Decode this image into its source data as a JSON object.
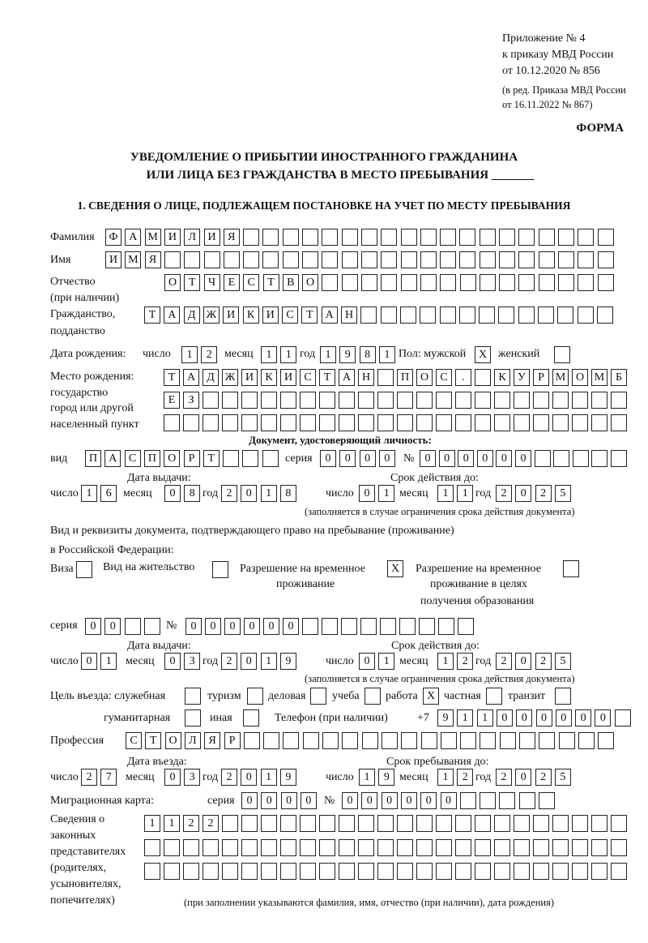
{
  "header": {
    "appendix": "Приложение № 4",
    "order": "к приказу МВД России",
    "order_date": "от 10.12.2020 № 856",
    "edition": "(в ред. Приказа МВД России",
    "edition_date": "от 16.11.2022 № 867)",
    "form_label": "ФОРМА",
    "title_line1": "УВЕДОМЛЕНИЕ О ПРИБЫТИИ ИНОСТРАННОГО ГРАЖДАНИНА",
    "title_line2": "ИЛИ ЛИЦА БЕЗ ГРАЖДАНСТВА В МЕСТО ПРЕБЫВАНИЯ _______",
    "section1": "1. СВЕДЕНИЯ О ЛИЦЕ, ПОДЛЕЖАЩЕМ ПОСТАНОВКЕ НА УЧЕТ ПО МЕСТУ ПРЕБЫВАНИЯ"
  },
  "labels": {
    "surname": "Фамилия",
    "name": "Имя",
    "patronymic": "Отчество",
    "patronymic_note": "(при наличии)",
    "citizenship": "Гражданство,",
    "citizenship2": "подданство",
    "birth_date": "Дата рождения:",
    "day": "число",
    "month": "месяц",
    "year": "год",
    "sex": "Пол: мужской",
    "female": "женский",
    "birthplace1": "Место рождения:",
    "birthplace2": "государство",
    "birthplace3": "город или другой",
    "birthplace4": "населенный пункт",
    "id_doc": "Документ, удостоверяющий личность:",
    "kind": "вид",
    "series": "серия",
    "number": "№",
    "issue_date": "Дата выдачи:",
    "valid_until": "Срок действия до:",
    "validity_note": "(заполняется в случае ограничения срока действия документа)",
    "right_doc1": "Вид и реквизиты документа, подтверждающего право на пребывание (проживание)",
    "right_doc2": "в Российской Федерации:",
    "visa": "Виза",
    "residence_permit": "Вид на жительство",
    "temp_residence1": "Разрешение на временное",
    "temp_residence2": "проживание",
    "temp_edu1": "Разрешение на временное",
    "temp_edu2": "проживание в целях",
    "temp_edu3": "получения образования",
    "purpose": "Цель въезда: служебная",
    "tourism": "туризм",
    "business": "деловая",
    "study": "учеба",
    "work": "работа",
    "private": "частная",
    "transit": "транзит",
    "humanitarian": "гуманитарная",
    "other": "иная",
    "phone": "Телефон (при наличии)",
    "phone_prefix": "+7",
    "profession": "Профессия",
    "entry_date": "Дата въезда:",
    "stay_until": "Срок пребывания до:",
    "migration_card": "Миграционная карта:",
    "reps1": "Сведения о",
    "reps2": "законных",
    "reps3": "представителях",
    "reps4": "(родителях,",
    "reps5": "усыновителях,",
    "reps6": "попечителях)",
    "reps_note": "(при заполнении указываются фамилия, имя, отчество (при наличии), дата рождения)"
  },
  "person": {
    "surname": "ФАМИЛИЯ",
    "name": "ИМЯ",
    "patronymic": "ОТЧЕСТВО",
    "citizenship": "ТАДЖИКИСТАН",
    "birth_day": "12",
    "birth_month": "11",
    "birth_year": "1981",
    "male": "X",
    "female": "",
    "birthplace_line1": "ТАДЖИКИСТАН ПОС. КУРМОМБ",
    "birthplace_line2": "ЕЗ",
    "birthplace_line3": ""
  },
  "id_document": {
    "kind": "ПАСПОРТ",
    "series": "0000",
    "number": "000000",
    "issue_day": "16",
    "issue_month": "08",
    "issue_year": "2018",
    "valid_day": "01",
    "valid_month": "11",
    "valid_year": "2025"
  },
  "right_document": {
    "visa": "",
    "residence_permit": "",
    "temp_residence": "X",
    "temp_residence_edu": "",
    "series": "00",
    "number": "000000",
    "issue_day": "01",
    "issue_month": "03",
    "issue_year": "2019",
    "valid_day": "01",
    "valid_month": "12",
    "valid_year": "2025"
  },
  "purpose": {
    "official": "",
    "tourism": "",
    "business": "",
    "study": "",
    "work": "X",
    "private": "",
    "transit": "",
    "humanitarian": "",
    "other": ""
  },
  "phone": "911000000",
  "profession": "СТОЛЯР",
  "entry": {
    "day": "27",
    "month": "03",
    "year": "2019",
    "stay_day": "19",
    "stay_month": "12",
    "stay_year": "2025"
  },
  "migration_card": {
    "series": "0000",
    "number": "000000"
  },
  "representatives": {
    "line1": "1122",
    "line2": "",
    "line3": ""
  }
}
